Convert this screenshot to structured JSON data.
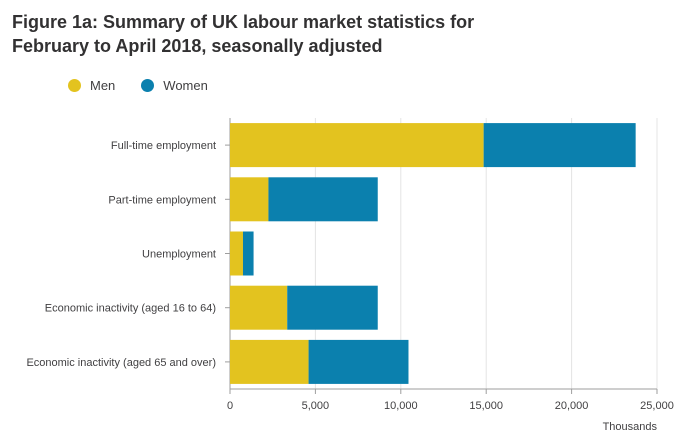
{
  "header": {
    "title_line1": "Figure 1a: Summary of UK labour market statistics for",
    "title_line2": "February to April 2018, seasonally adjusted"
  },
  "colors": {
    "men": "#e3c31f",
    "women": "#0b80ae",
    "grid": "#e4e4e4",
    "axis": "#9e9e9e"
  },
  "chart_data": {
    "type": "bar",
    "orientation": "horizontal",
    "stacked": true,
    "title": "Figure 1a: Summary of UK labour market statistics for February to April 2018, seasonally adjusted",
    "categories": [
      "Full-time employment",
      "Part-time employment",
      "Unemployment",
      "Economic inactivity (aged 16 to 64)",
      "Economic inactivity (aged 65 and over)"
    ],
    "series": [
      {
        "name": "Men",
        "values": [
          14850,
          2250,
          760,
          3350,
          4600
        ]
      },
      {
        "name": "Women",
        "values": [
          8900,
          6400,
          620,
          5300,
          5850
        ]
      }
    ],
    "x_ticks": [
      "0",
      "5,000",
      "10,000",
      "15,000",
      "20,000",
      "25,000"
    ],
    "xlim": [
      0,
      25000
    ],
    "xlabel": "Thousands",
    "ylabel": "",
    "legend_position": "top-left",
    "grid": true
  }
}
